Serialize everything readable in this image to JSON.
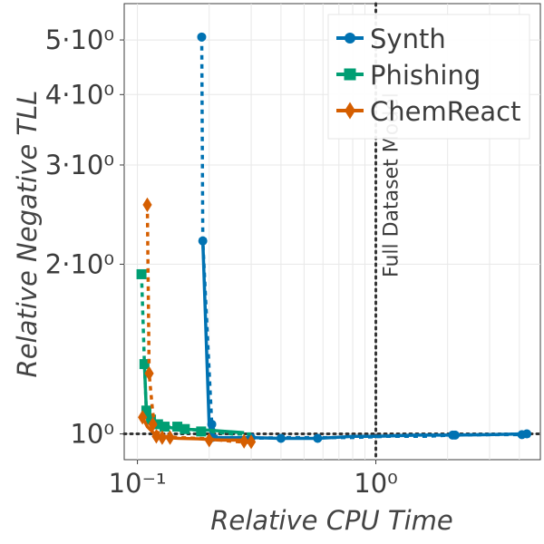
{
  "chart_data": {
    "type": "line",
    "xlabel": "Relative CPU Time",
    "ylabel": "Relative Negative TLL",
    "xscale": "log",
    "yscale": "log",
    "xlim": [
      0.088,
      4.9
    ],
    "ylim": [
      0.9,
      5.8
    ],
    "x_ticks": [
      {
        "value": 0.1,
        "label": "10⁻¹"
      },
      {
        "value": 1,
        "label": "10⁰"
      }
    ],
    "y_ticks": [
      {
        "value": 1,
        "label": "10⁰"
      },
      {
        "value": 2,
        "label": "2·10⁰"
      },
      {
        "value": 3,
        "label": "3·10⁰"
      },
      {
        "value": 4,
        "label": "4·10⁰"
      },
      {
        "value": 5,
        "label": "5·10⁰"
      }
    ],
    "grid": true,
    "legend_position": "top-right",
    "reference_lines": {
      "vertical": {
        "x": 1.0,
        "label": "Full Dataset Model"
      },
      "horizontal": {
        "y": 1.0
      }
    },
    "series": [
      {
        "name": "Synth",
        "color": "#0072b2",
        "marker": "circle",
        "dotted": [
          [
            0.186,
            5.06
          ],
          [
            0.188,
            2.2
          ],
          [
            0.205,
            1.04
          ],
          [
            0.215,
            0.985
          ],
          [
            0.245,
            0.982
          ],
          [
            0.3,
            0.982
          ],
          [
            0.4,
            0.985
          ],
          [
            0.55,
            0.985
          ],
          [
            0.8,
            0.985
          ],
          [
            1.1,
            0.99
          ],
          [
            1.6,
            0.99
          ],
          [
            2.1,
            0.995
          ],
          [
            3.0,
            0.997
          ],
          [
            4.2,
            0.997
          ]
        ],
        "solid": [
          [
            0.188,
            2.2
          ],
          [
            0.2,
            1.04
          ],
          [
            0.206,
            0.985
          ],
          [
            0.3,
            0.985
          ],
          [
            0.4,
            0.982
          ],
          [
            0.57,
            0.982
          ],
          [
            0.8,
            0.99
          ],
          [
            1.0,
            0.99
          ],
          [
            1.5,
            0.995
          ],
          [
            2.1,
            0.995
          ],
          [
            3.0,
            0.997
          ],
          [
            4.0,
            1.0
          ],
          [
            4.3,
            1.0
          ]
        ],
        "markers": [
          [
            0.186,
            5.06
          ],
          [
            0.188,
            2.2
          ],
          [
            0.205,
            1.04
          ],
          [
            0.206,
            0.985
          ],
          [
            0.3,
            0.985
          ],
          [
            0.4,
            0.982
          ],
          [
            0.57,
            0.982
          ],
          [
            2.1,
            0.995
          ],
          [
            2.15,
            0.995
          ],
          [
            4.1,
            0.997
          ],
          [
            4.3,
            1.0
          ]
        ]
      },
      {
        "name": "Phishing",
        "color": "#009e73",
        "marker": "square",
        "dotted": [
          [
            0.104,
            1.92
          ],
          [
            0.107,
            1.33
          ],
          [
            0.109,
            1.1
          ],
          [
            0.115,
            1.06
          ],
          [
            0.125,
            1.03
          ],
          [
            0.14,
            1.03
          ],
          [
            0.16,
            1.02
          ],
          [
            0.2,
            1.01
          ],
          [
            0.25,
            1.0
          ],
          [
            0.3,
            1.0
          ]
        ],
        "solid": [
          [
            0.107,
            1.33
          ],
          [
            0.109,
            1.1
          ],
          [
            0.114,
            1.06
          ],
          [
            0.12,
            1.04
          ],
          [
            0.13,
            1.03
          ],
          [
            0.15,
            1.02
          ],
          [
            0.2,
            1.015
          ],
          [
            0.28,
            1.005
          ]
        ],
        "markers": [
          [
            0.104,
            1.92
          ],
          [
            0.107,
            1.33
          ],
          [
            0.109,
            1.1
          ],
          [
            0.114,
            1.06
          ],
          [
            0.122,
            1.04
          ],
          [
            0.13,
            1.03
          ],
          [
            0.147,
            1.03
          ],
          [
            0.158,
            1.02
          ],
          [
            0.185,
            1.01
          ]
        ]
      },
      {
        "name": "ChemReact",
        "color": "#d55e00",
        "marker": "diamond",
        "dotted": [
          [
            0.11,
            2.55
          ],
          [
            0.112,
            1.28
          ],
          [
            0.116,
            1.09
          ],
          [
            0.12,
            1.01
          ],
          [
            0.13,
            0.99
          ],
          [
            0.15,
            0.985
          ],
          [
            0.2,
            0.98
          ],
          [
            0.25,
            0.97
          ],
          [
            0.3,
            0.965
          ]
        ],
        "solid": [
          [
            0.105,
            1.07
          ],
          [
            0.11,
            1.03
          ],
          [
            0.118,
            1.0
          ],
          [
            0.13,
            0.985
          ],
          [
            0.15,
            0.982
          ],
          [
            0.18,
            0.98
          ],
          [
            0.22,
            0.975
          ],
          [
            0.28,
            0.975
          ]
        ],
        "markers": [
          [
            0.11,
            2.55
          ],
          [
            0.112,
            1.28
          ],
          [
            0.105,
            1.07
          ],
          [
            0.116,
            1.04
          ],
          [
            0.12,
            0.99
          ],
          [
            0.127,
            0.985
          ],
          [
            0.137,
            0.985
          ],
          [
            0.2,
            0.975
          ],
          [
            0.28,
            0.97
          ],
          [
            0.3,
            0.968
          ]
        ]
      }
    ]
  }
}
